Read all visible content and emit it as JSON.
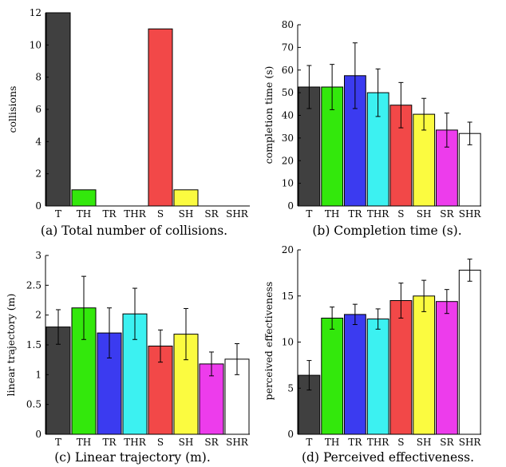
{
  "chart_data": [
    {
      "type": "bar",
      "caption": "(a) Total number of collisions.",
      "ylabel": "collisions",
      "xlabel": "",
      "categories": [
        "T",
        "TH",
        "TR",
        "THR",
        "S",
        "SH",
        "SR",
        "SHR"
      ],
      "values": [
        12,
        1,
        0,
        0,
        11,
        1,
        0,
        0
      ],
      "errors": null,
      "ylim": [
        0,
        12
      ],
      "yticks": [
        0,
        2,
        4,
        6,
        8,
        10,
        12
      ],
      "grid": false
    },
    {
      "type": "bar",
      "caption": "(b) Completion time (s).",
      "ylabel": "completion time (s)",
      "xlabel": "",
      "categories": [
        "T",
        "TH",
        "TR",
        "THR",
        "S",
        "SH",
        "SR",
        "SHR"
      ],
      "values": [
        52.5,
        52.5,
        57.5,
        50,
        44.5,
        40.5,
        33.5,
        32
      ],
      "errors": [
        9.5,
        10,
        14.5,
        10.5,
        10,
        7,
        7.5,
        5
      ],
      "ylim": [
        0,
        80
      ],
      "yticks": [
        0,
        10,
        20,
        30,
        40,
        50,
        60,
        70,
        80
      ],
      "grid": false
    },
    {
      "type": "bar",
      "caption": "(c) Linear trajectory (m).",
      "ylabel": "linear trajectory (m)",
      "xlabel": "",
      "categories": [
        "T",
        "TH",
        "TR",
        "THR",
        "S",
        "SH",
        "SR",
        "SHR"
      ],
      "values": [
        1.8,
        2.12,
        1.7,
        2.02,
        1.48,
        1.68,
        1.18,
        1.26
      ],
      "errors": [
        0.29,
        0.53,
        0.42,
        0.43,
        0.27,
        0.43,
        0.2,
        0.26
      ],
      "ylim": [
        0,
        3
      ],
      "yticks": [
        0,
        0.5,
        1,
        1.5,
        2,
        2.5,
        3
      ],
      "grid": false
    },
    {
      "type": "bar",
      "caption": "(d) Perceived effectiveness.",
      "ylabel": "perceived effectiveness",
      "xlabel": "",
      "categories": [
        "T",
        "TH",
        "TR",
        "THR",
        "S",
        "SH",
        "SR",
        "SHR"
      ],
      "values": [
        6.4,
        12.6,
        13,
        12.5,
        14.5,
        15,
        14.4,
        17.8
      ],
      "errors": [
        1.6,
        1.2,
        1.1,
        1.1,
        1.9,
        1.7,
        1.3,
        1.2
      ],
      "ylim": [
        0,
        20
      ],
      "yticks": [
        0,
        5,
        10,
        15,
        20
      ],
      "grid": false
    }
  ],
  "colors": [
    "#404040",
    "#33e80c",
    "#3b3bf0",
    "#3cf1f1",
    "#f24848",
    "#fbfb40",
    "#ed3cec",
    "#ffffff"
  ]
}
